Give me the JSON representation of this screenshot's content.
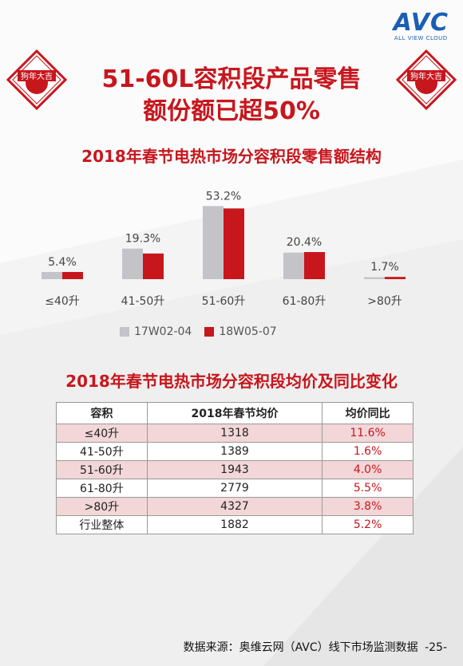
{
  "brand": {
    "logo": "AVC",
    "tagline": "ALL VIEW CLOUD"
  },
  "title": {
    "line1": "51-60L容积段产品零售",
    "line2": "额份额已超50%"
  },
  "seal_text": "狗年大吉",
  "chart_section": {
    "title": "2018年春节电热市场分容积段零售额结构"
  },
  "chart_data": {
    "type": "bar",
    "categories": [
      "≤40升",
      "41-50升",
      "51-60升",
      "61-80升",
      ">80升"
    ],
    "series": [
      {
        "name": "17W02-04",
        "values": [
          5.4,
          23,
          55,
          20,
          1.5
        ],
        "color": "#c4c4c8"
      },
      {
        "name": "18W05-07",
        "values": [
          5.4,
          19.3,
          53.2,
          20.4,
          1.7
        ],
        "color": "#c8161d"
      }
    ],
    "data_labels": [
      "5.4%",
      "19.3%",
      "53.2%",
      "20.4%",
      "1.7%"
    ],
    "ylim": [
      0,
      60
    ]
  },
  "table_section": {
    "title": "2018年春节电热市场分容积段均价及同比变化"
  },
  "table": {
    "headers": [
      "容积",
      "2018年春节均价",
      "均价同比"
    ],
    "rows": [
      [
        "≤40升",
        "1318",
        "11.6%"
      ],
      [
        "41-50升",
        "1389",
        "1.6%"
      ],
      [
        "51-60升",
        "1943",
        "4.0%"
      ],
      [
        "61-80升",
        "2779",
        "5.5%"
      ],
      [
        ">80升",
        "4327",
        "3.8%"
      ],
      [
        "行业整体",
        "1882",
        "5.2%"
      ]
    ]
  },
  "source": "数据来源：奥维云网（AVC）线下市场监测数据",
  "page_number": "-25-",
  "colors": {
    "accent": "#c8161d",
    "gray_bar": "#c4c4c8",
    "brand_blue": "#1a5fb4",
    "row_highlight": "#f3d6d8"
  }
}
